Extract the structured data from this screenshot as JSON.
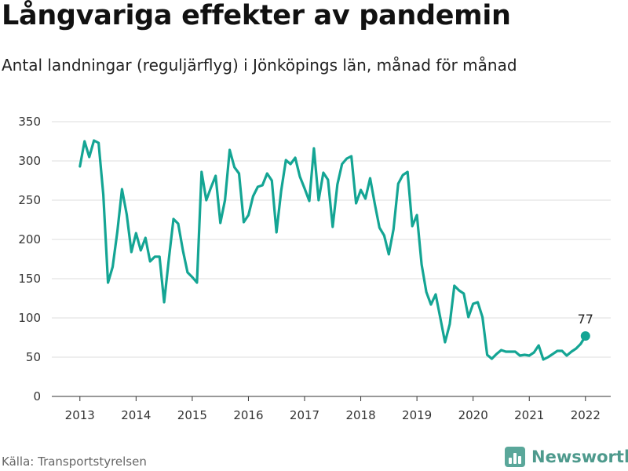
{
  "header": {
    "title": "Långvariga effekter av pandemin",
    "subtitle": "Antal landningar (reguljärflyg) i Jönköpings län, månad för månad"
  },
  "footer": {
    "source": "Källa: Transportstyrelsen",
    "brand": "Newsworthy"
  },
  "colors": {
    "line": "#14a594",
    "grid": "#dddddd",
    "axis": "#333333"
  },
  "chart_data": {
    "type": "line",
    "title": "Långvariga effekter av pandemin",
    "subtitle": "Antal landningar (reguljärflyg) i Jönköpings län, månad för månad",
    "xlabel": "",
    "ylabel": "",
    "xlim": [
      2012.5,
      2022.45
    ],
    "ylim": [
      0,
      350
    ],
    "yticks": [
      0,
      50,
      100,
      150,
      200,
      250,
      300,
      350
    ],
    "xticks": [
      2013,
      2014,
      2015,
      2016,
      2017,
      2018,
      2019,
      2020,
      2021,
      2022
    ],
    "grid": true,
    "legend": "none",
    "end_label": "77",
    "series": [
      {
        "values": [
          293,
          325,
          305,
          326,
          323,
          257,
          145,
          165,
          210,
          264,
          232,
          184,
          208,
          186,
          202,
          172,
          178,
          178,
          120,
          175,
          226,
          220,
          186,
          158,
          152,
          145,
          286,
          250,
          266,
          281,
          221,
          250,
          314,
          292,
          284,
          222,
          231,
          255,
          267,
          269,
          284,
          275,
          209,
          262,
          301,
          296,
          304,
          280,
          265,
          249,
          316,
          250,
          285,
          276,
          216,
          270,
          296,
          303,
          306,
          246,
          263,
          252,
          278,
          245,
          215,
          205,
          181,
          213,
          271,
          282,
          286,
          217,
          231,
          168,
          133,
          117,
          130,
          100,
          69,
          92,
          141,
          135,
          131,
          101,
          118,
          120,
          101,
          53,
          48,
          54,
          59,
          57,
          57,
          57,
          52,
          53,
          52,
          56,
          65,
          47,
          50,
          54,
          58,
          58,
          52,
          57,
          61,
          67,
          77
        ]
      }
    ]
  }
}
